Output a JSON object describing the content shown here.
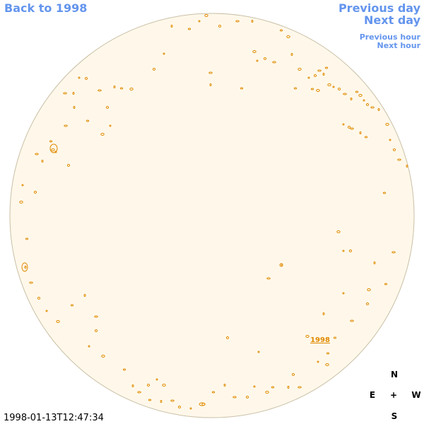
{
  "nav": {
    "back": "Back to 1998",
    "previous_day": "Previous day",
    "next_day": "Next day",
    "previous_hour": "Previous hour",
    "next_hour": "Next hour"
  },
  "disk_label": "1998",
  "compass": {
    "north": "N",
    "east": "E",
    "center": "+",
    "west": "W",
    "south": "S"
  },
  "timestamp": "1998-01-13T12:47:34"
}
